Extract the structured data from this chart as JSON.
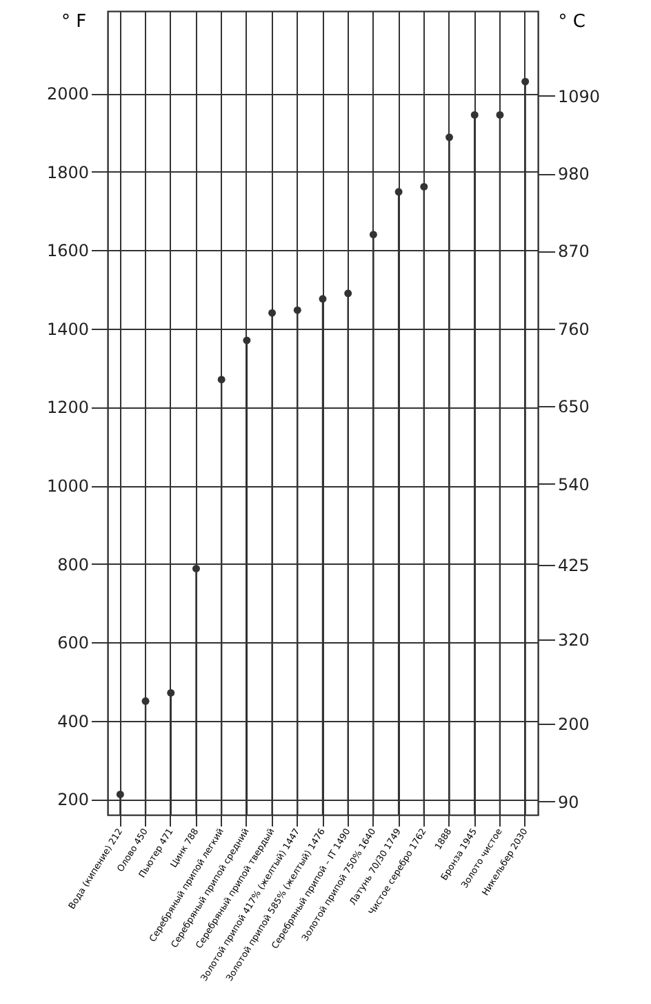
{
  "chart_data": {
    "type": "lollipop",
    "ylabel": "° F",
    "y2label": "° C",
    "categories": [
      "Вода (кипение) 212",
      "Олово 450",
      "Пьютер 471",
      "Цинк 788",
      "Серебряный припой легкий",
      "Серебряный припой средний",
      "Серебряный припой твердый",
      "Золотой припой 417% (желтый) 1447",
      "Золотой припой 585% (желтый) 1476",
      "Серебряный припой – IT 1490",
      "Золотой припой 750% 1640",
      "Латунь 70/30 1749",
      "Чистое серебро 1762",
      "1888",
      "Бронза 1945",
      "Золото чистое",
      "Никельбер 2030"
    ],
    "series": [
      {
        "color": "#333333",
        "values": [
          212,
          450,
          471,
          788,
          1270,
          1370,
          1440,
          1447,
          1476,
          1490,
          1640,
          1749,
          1762,
          1888,
          1945,
          1945,
          2030
        ]
      }
    ],
    "ylim": [
      160,
      2210
    ],
    "yticks": [
      200,
      400,
      600,
      800,
      1000,
      1200,
      1400,
      1600,
      1800,
      2000
    ],
    "y2lim": [
      71,
      1210
    ],
    "y2ticks": [
      90,
      200,
      320,
      425,
      540,
      650,
      760,
      870,
      980,
      1090
    ],
    "grid": true,
    "marker": "circle"
  }
}
